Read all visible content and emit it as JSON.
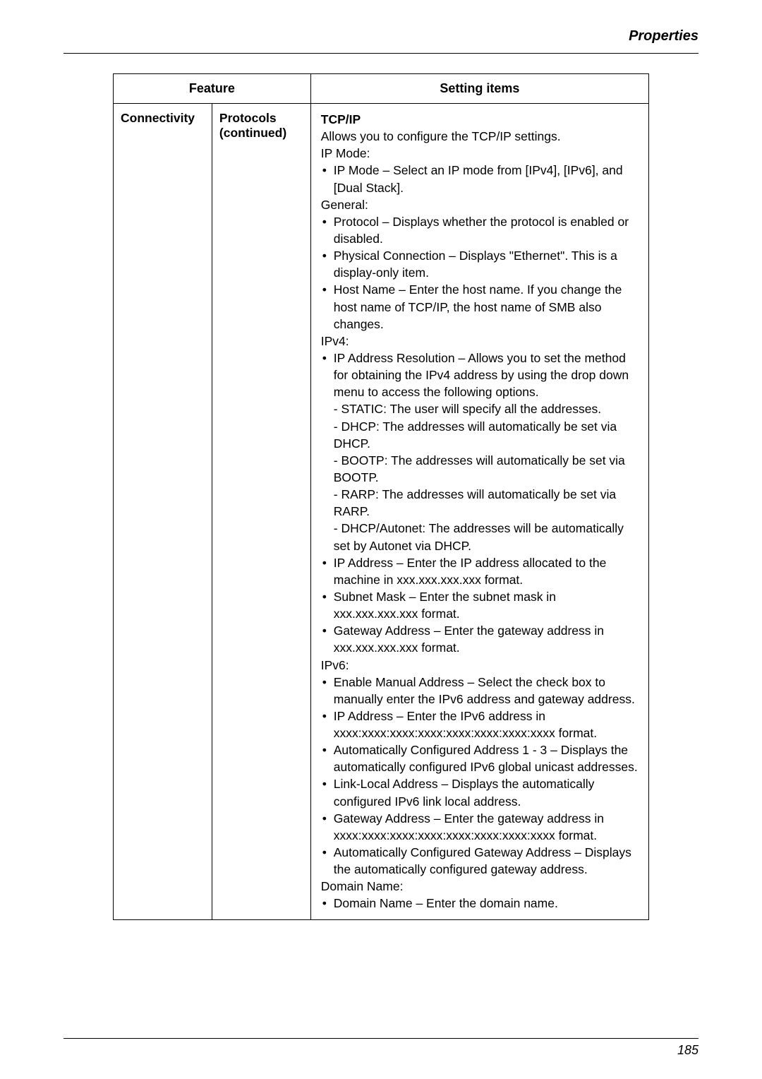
{
  "header": {
    "section_title": "Properties"
  },
  "table": {
    "headers": {
      "feature": "Feature",
      "setting": "Setting items"
    },
    "row": {
      "feature": "Connectivity",
      "subfeature_line1": "Protocols",
      "subfeature_line2": "(continued)",
      "title": "TCP/IP",
      "intro": "Allows you to configure the TCP/IP settings.",
      "ipmode_label": "IP Mode:",
      "ipmode_item": "IP Mode – Select an IP mode from [IPv4], [IPv6], and [Dual Stack].",
      "general_label": "General:",
      "general_items": [
        "Protocol – Displays whether the protocol is enabled or disabled.",
        "Physical Connection – Displays \"Ethernet\". This is a display-only item.",
        "Host Name – Enter the host name. If you change the host name of TCP/IP, the host name of SMB also changes."
      ],
      "ipv4_label": "IPv4:",
      "ipv4_items": [
        "IP Address Resolution – Allows you to set the method for obtaining the IPv4 address by using the drop down menu to access the following options.",
        "IP Address – Enter the IP address allocated to the machine in xxx.xxx.xxx.xxx format.",
        "Subnet Mask – Enter the subnet mask in xxx.xxx.xxx.xxx format.",
        "Gateway Address – Enter the gateway address in xxx.xxx.xxx.xxx format."
      ],
      "ipv4_sub_items": [
        "- STATIC: The user will specify all the addresses.",
        "- DHCP: The addresses will automatically be set via DHCP.",
        "- BOOTP: The addresses will automatically be set via BOOTP.",
        "- RARP: The addresses will automatically be set via RARP.",
        "- DHCP/Autonet: The addresses will be automatically set by Autonet via DHCP."
      ],
      "ipv6_label": "IPv6:",
      "ipv6_items": [
        "Enable Manual Address – Select the check box to manually enter the IPv6 address and gateway address.",
        "IP Address – Enter the IPv6 address in xxxx:xxxx:xxxx:xxxx:xxxx:xxxx:xxxx:xxxx format.",
        "Automatically Configured Address 1 - 3 – Displays the automatically configured IPv6 global unicast addresses.",
        "Link-Local Address – Displays the automatically configured IPv6 link local address.",
        "Gateway Address – Enter the gateway address in xxxx:xxxx:xxxx:xxxx:xxxx:xxxx:xxxx:xxxx format.",
        "Automatically Configured Gateway Address – Displays the automatically configured gateway address."
      ],
      "domain_label": "Domain Name:",
      "domain_item": "Domain Name – Enter the domain name."
    }
  },
  "footer": {
    "page_number": "185"
  }
}
